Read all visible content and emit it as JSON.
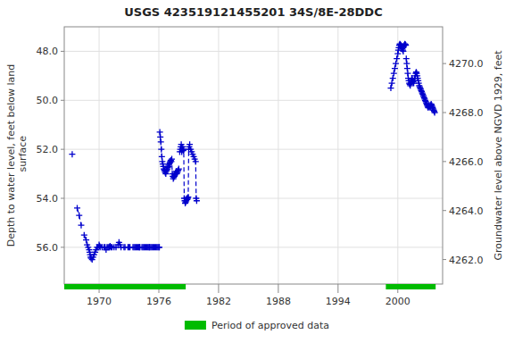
{
  "chart_data": {
    "type": "line",
    "title": "USGS 423519121455201 34S/8E-28DDC",
    "y_label": "Depth to water level, feet below land\n surface",
    "y2_label": "Groundwater level above NGVD 1929, feet",
    "xlim": [
      1966.5,
      2004.5
    ],
    "xticks": [
      1970,
      1976,
      1982,
      1988,
      1994,
      2000
    ],
    "ylim": [
      57.5,
      47.0
    ],
    "yticks": [
      {
        "value": 48.0,
        "label": "48.0"
      },
      {
        "value": 50.0,
        "label": "50.0"
      },
      {
        "value": 52.0,
        "label": "52.0"
      },
      {
        "value": 54.0,
        "label": "54.0"
      },
      {
        "value": 56.0,
        "label": "56.0"
      }
    ],
    "y2lim": [
      4261.0,
      4271.5
    ],
    "y2ticks": [
      {
        "value": 4262.0,
        "label": "4262.0"
      },
      {
        "value": 4264.0,
        "label": "4264.0"
      },
      {
        "value": 4266.0,
        "label": "4266.0"
      },
      {
        "value": 4268.0,
        "label": "4268.0"
      },
      {
        "value": 4270.0,
        "label": "4270.0"
      }
    ],
    "grid": true,
    "legend": "bottom",
    "series": [
      {
        "color": "#0000cc",
        "marker": "plus",
        "line_style": "dashed",
        "x": [
          1967.3
        ],
        "values": [
          52.2
        ]
      },
      {
        "color": "#0000cc",
        "marker": "plus",
        "line_style": "dashed",
        "x": [
          1967.8,
          1968.0,
          1968.2
        ],
        "values": [
          54.4,
          54.7,
          55.1
        ]
      },
      {
        "color": "#0000cc",
        "marker": "plus",
        "line_style": "dashed",
        "x": [
          1968.5,
          1968.7,
          1968.8,
          1968.9,
          1969.0,
          1969.05,
          1969.1,
          1969.15,
          1969.2,
          1969.3,
          1969.4,
          1969.5,
          1969.6,
          1969.7,
          1969.8,
          1969.9,
          1970.0,
          1970.05,
          1970.1
        ],
        "values": [
          55.5,
          55.7,
          55.9,
          56.0,
          56.1,
          56.2,
          56.3,
          56.4,
          56.45,
          56.5,
          56.4,
          56.3,
          56.2,
          56.1,
          56.0,
          56.0,
          55.9,
          55.95,
          56.0
        ]
      },
      {
        "color": "#0000cc",
        "marker": "plus",
        "line_style": "dashed",
        "x": [
          1970.3,
          1970.5,
          1970.6,
          1970.7,
          1970.8,
          1970.9,
          1971.0,
          1971.05,
          1971.1,
          1971.2,
          1971.3,
          1971.5,
          1971.7,
          1971.9
        ],
        "values": [
          56.0,
          56.0,
          56.0,
          56.1,
          56.0,
          56.0,
          56.0,
          56.0,
          55.95,
          56.0,
          56.0,
          56.0,
          56.0,
          55.9
        ]
      },
      {
        "color": "#0000cc",
        "marker": "plus",
        "line_style": "dashed",
        "x": [
          1972.0,
          1972.1,
          1972.2
        ],
        "values": [
          55.8,
          55.9,
          56.0
        ]
      },
      {
        "color": "#0000cc",
        "marker": "plus",
        "line_style": "dashed",
        "x": [
          1972.5,
          1972.6
        ],
        "values": [
          56.0,
          56.0
        ]
      },
      {
        "color": "#0000cc",
        "marker": "plus",
        "line_style": "dashed",
        "x": [
          1972.9,
          1973.0,
          1973.1
        ],
        "values": [
          56.0,
          56.0,
          56.0
        ]
      },
      {
        "color": "#0000cc",
        "marker": "plus",
        "line_style": "dashed",
        "x": [
          1973.4,
          1973.5,
          1973.6,
          1973.7,
          1973.8,
          1973.9,
          1974.0,
          1974.05,
          1974.1
        ],
        "values": [
          56.0,
          56.0,
          56.0,
          56.0,
          56.0,
          56.0,
          56.0,
          56.0,
          56.0
        ]
      },
      {
        "color": "#0000cc",
        "marker": "plus",
        "line_style": "dashed",
        "x": [
          1974.3,
          1974.4,
          1974.5,
          1974.6,
          1974.7,
          1974.8,
          1974.9,
          1975.0,
          1975.05,
          1975.1,
          1975.2,
          1975.3,
          1975.4,
          1975.5,
          1975.6,
          1975.7,
          1975.8,
          1975.9,
          1976.0,
          1976.05
        ],
        "values": [
          56.0,
          56.0,
          56.0,
          56.0,
          56.0,
          56.0,
          56.0,
          56.0,
          56.0,
          56.0,
          56.0,
          56.0,
          56.0,
          56.0,
          56.0,
          56.0,
          56.0,
          56.0,
          56.0,
          56.0
        ]
      },
      {
        "color": "#0000cc",
        "marker": "plus",
        "line_style": "dashed",
        "x": [
          1976.1,
          1976.15,
          1976.2,
          1976.25,
          1976.3,
          1976.35,
          1976.4,
          1976.45,
          1976.5,
          1976.55,
          1976.6,
          1976.65,
          1976.7,
          1976.75,
          1976.8,
          1976.85,
          1976.9,
          1976.95,
          1977.0
        ],
        "values": [
          51.3,
          51.5,
          51.7,
          52.0,
          52.3,
          52.5,
          52.6,
          52.7,
          52.8,
          52.85,
          52.9,
          52.95,
          53.0,
          52.9,
          52.85,
          52.8,
          52.75,
          52.7,
          52.65
        ]
      },
      {
        "color": "#0000cc",
        "marker": "plus",
        "line_style": "dashed",
        "x": [
          1977.05,
          1977.1,
          1977.15,
          1977.2,
          1977.25,
          1977.3,
          1977.35,
          1977.4,
          1977.45,
          1977.5,
          1977.55,
          1977.6,
          1977.65,
          1977.7,
          1977.75,
          1977.8,
          1977.85,
          1977.9,
          1977.95,
          1978.0
        ],
        "values": [
          52.6,
          52.55,
          52.5,
          52.45,
          52.5,
          52.4,
          53.0,
          53.1,
          53.2,
          53.15,
          53.1,
          53.05,
          53.0,
          52.95,
          52.9,
          53.0,
          52.95,
          52.9,
          52.85,
          52.8
        ]
      },
      {
        "color": "#0000cc",
        "marker": "plus",
        "line_style": "dashed",
        "x": [
          1978.1,
          1978.15,
          1978.2,
          1978.25,
          1978.3,
          1978.35,
          1978.4,
          1978.45,
          1978.5,
          1978.55,
          1978.6
        ],
        "values": [
          52.1,
          52.0,
          51.9,
          51.8,
          52.1,
          52.0,
          51.9,
          52.05,
          52.0,
          54.0,
          54.1
        ]
      },
      {
        "color": "#0000cc",
        "marker": "plus",
        "line_style": "dashed",
        "x": [
          1978.65,
          1978.7,
          1978.75,
          1978.8,
          1978.85,
          1978.9,
          1978.95,
          1979.0,
          1979.05,
          1979.1,
          1979.2,
          1979.3,
          1979.4,
          1979.5,
          1979.6,
          1979.7,
          1979.75,
          1979.8
        ],
        "values": [
          54.2,
          54.15,
          54.1,
          54.0,
          54.05,
          54.0,
          53.95,
          52.0,
          51.9,
          51.8,
          52.0,
          52.1,
          52.2,
          52.3,
          52.4,
          52.5,
          54.0,
          54.1
        ]
      },
      {
        "color": "#0000cc",
        "marker": "plus",
        "line_style": "dashed",
        "x": [
          1999.3,
          1999.4,
          1999.5,
          1999.6,
          1999.7,
          1999.8,
          1999.9,
          2000.0,
          2000.05,
          2000.1,
          2000.15,
          2000.2,
          2000.25,
          2000.3,
          2000.35,
          2000.4,
          2000.45,
          2000.5,
          2000.55,
          2000.6,
          2000.65,
          2000.7,
          2000.75,
          2000.8
        ],
        "values": [
          49.5,
          49.3,
          49.1,
          48.9,
          48.7,
          48.5,
          48.3,
          48.1,
          47.95,
          47.85,
          47.75,
          47.7,
          47.72,
          47.75,
          47.8,
          47.85,
          47.9,
          47.95,
          48.0,
          47.8,
          47.75,
          47.7,
          47.72,
          47.75
        ]
      },
      {
        "color": "#0000cc",
        "marker": "plus",
        "line_style": "dashed",
        "x": [
          2000.85,
          2000.9,
          2000.95,
          2001.0,
          2001.05,
          2001.1,
          2001.15,
          2001.2,
          2001.25,
          2001.3,
          2001.35,
          2001.4,
          2001.45,
          2001.5,
          2001.55,
          2001.6,
          2001.65,
          2001.7,
          2001.75,
          2001.8,
          2001.85,
          2001.9,
          2001.95,
          2002.0,
          2002.05,
          2002.1,
          2002.15,
          2002.2,
          2002.25,
          2002.3,
          2002.35,
          2002.4,
          2002.45,
          2002.5,
          2002.55,
          2002.6,
          2002.65,
          2002.7,
          2002.75,
          2002.8,
          2002.85,
          2002.9,
          2002.95,
          2003.0,
          2003.05,
          2003.1,
          2003.15,
          2003.2,
          2003.25,
          2003.3,
          2003.35,
          2003.4,
          2003.45,
          2003.5,
          2003.55,
          2003.6,
          2003.65,
          2003.7
        ],
        "values": [
          48.3,
          48.5,
          48.7,
          48.9,
          49.1,
          49.2,
          49.3,
          49.35,
          49.4,
          49.3,
          49.2,
          49.1,
          49.15,
          49.2,
          49.25,
          49.3,
          49.2,
          49.1,
          49.0,
          48.9,
          48.85,
          48.9,
          49.0,
          49.1,
          49.2,
          49.3,
          49.4,
          49.45,
          49.5,
          49.55,
          49.6,
          49.65,
          49.7,
          49.75,
          49.8,
          49.85,
          49.9,
          49.95,
          50.0,
          50.05,
          50.1,
          50.15,
          50.2,
          50.25,
          50.3,
          50.25,
          50.2,
          50.25,
          50.3,
          50.2,
          50.15,
          50.2,
          50.25,
          50.3,
          50.35,
          50.4,
          50.45,
          50.5
        ]
      }
    ],
    "approved_periods": {
      "name": "Period of approved data",
      "color": "#00bb00",
      "ranges": [
        [
          1966.5,
          1978.7
        ],
        [
          1998.8,
          2003.8
        ]
      ]
    }
  }
}
